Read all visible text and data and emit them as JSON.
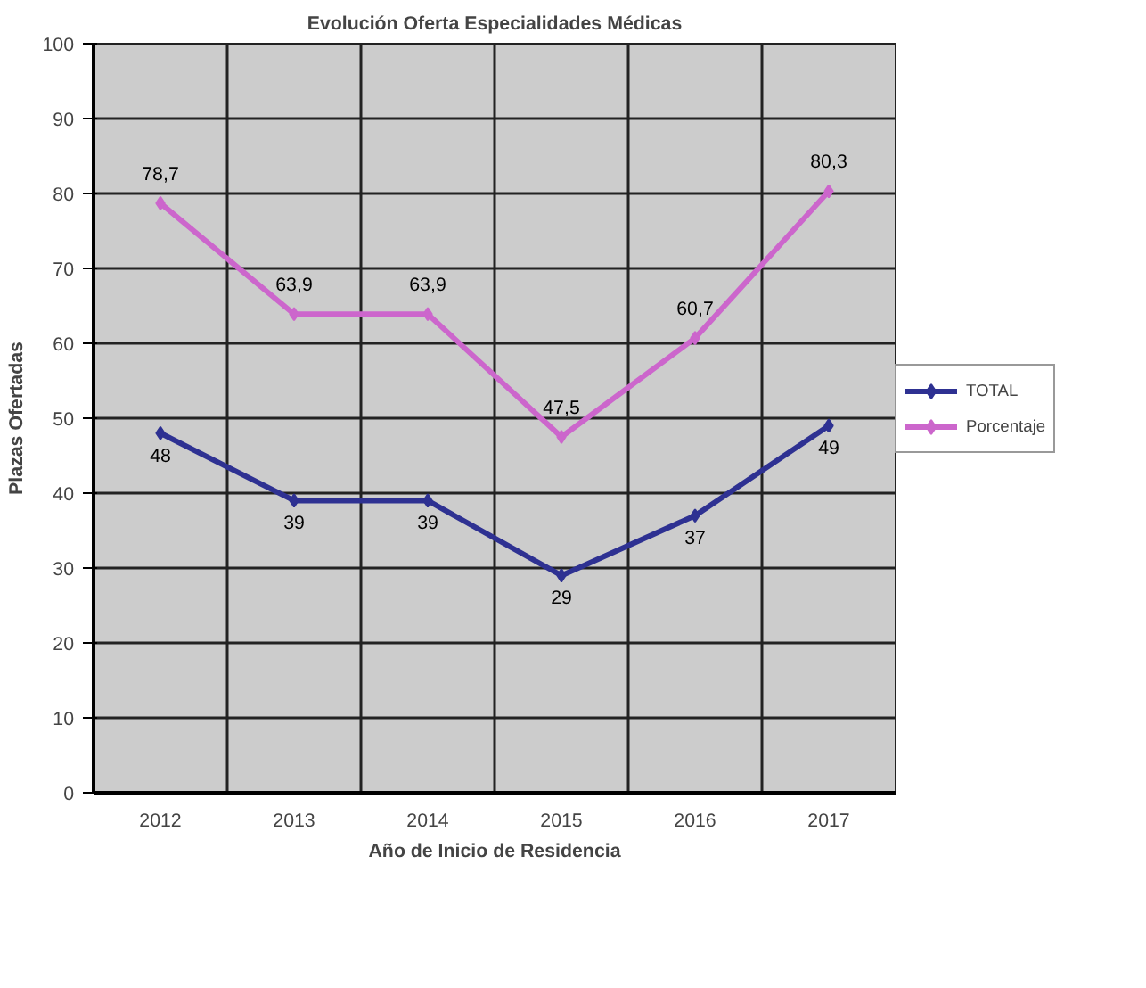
{
  "chart_data": {
    "type": "line",
    "title": "Evolución Oferta Especialidades Médicas",
    "xlabel": "Año de Inicio de Residencia",
    "ylabel": "Plazas Ofertadas",
    "categories": [
      "2012",
      "2013",
      "2014",
      "2015",
      "2016",
      "2017"
    ],
    "series": [
      {
        "name": "TOTAL",
        "color": "#2e3192",
        "values": [
          48,
          39,
          39,
          29,
          37,
          49
        ],
        "value_labels": [
          "48",
          "39",
          "39",
          "29",
          "37",
          "49"
        ]
      },
      {
        "name": "Porcentaje",
        "color": "#cc66cc",
        "values": [
          78.7,
          63.9,
          63.9,
          47.5,
          60.7,
          80.3
        ],
        "value_labels": [
          "78,7",
          "63,9",
          "63,9",
          "47,5",
          "60,7",
          "80,3"
        ]
      }
    ],
    "ylim": [
      0,
      100
    ],
    "yticks": [
      0,
      10,
      20,
      30,
      40,
      50,
      60,
      70,
      80,
      90,
      100
    ],
    "grid": true,
    "legend": "right",
    "marker": "diamond",
    "line_style": "solid"
  }
}
